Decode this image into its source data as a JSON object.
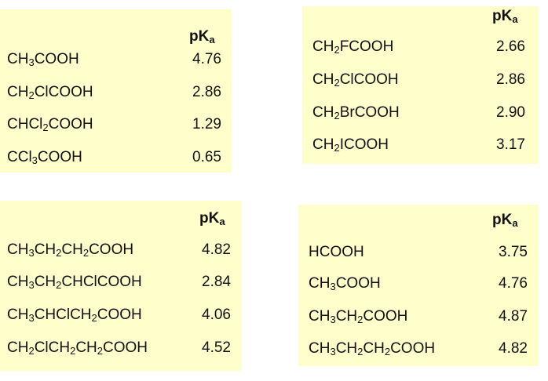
{
  "tables": [
    {
      "header": {
        "main": "pK",
        "sub": "a"
      },
      "rows": [
        {
          "formula": [
            [
              "CH",
              "3"
            ],
            [
              "COOH",
              ""
            ]
          ],
          "value": "4.76"
        },
        {
          "formula": [
            [
              "CH",
              "2"
            ],
            [
              "ClCOOH",
              ""
            ]
          ],
          "value": "2.86"
        },
        {
          "formula": [
            [
              "CHCl",
              "2"
            ],
            [
              "COOH",
              ""
            ]
          ],
          "value": "1.29"
        },
        {
          "formula": [
            [
              "CCl",
              "3"
            ],
            [
              "COOH",
              ""
            ]
          ],
          "value": "0.65"
        }
      ]
    },
    {
      "header": {
        "main": "pK",
        "sub": "a"
      },
      "rows": [
        {
          "formula": [
            [
              "CH",
              "2"
            ],
            [
              "FCOOH",
              ""
            ]
          ],
          "value": "2.66"
        },
        {
          "formula": [
            [
              "CH",
              "2"
            ],
            [
              "ClCOOH",
              ""
            ]
          ],
          "value": "2.86"
        },
        {
          "formula": [
            [
              "CH",
              "2"
            ],
            [
              "BrCOOH",
              ""
            ]
          ],
          "value": "2.90"
        },
        {
          "formula": [
            [
              "CH",
              "2"
            ],
            [
              "ICOOH",
              ""
            ]
          ],
          "value": "3.17"
        }
      ]
    },
    {
      "header": {
        "main": "pK",
        "sub": "a"
      },
      "rows": [
        {
          "formula": [
            [
              "CH",
              "3"
            ],
            [
              "CH",
              "2"
            ],
            [
              "CH",
              "2"
            ],
            [
              "COOH",
              ""
            ]
          ],
          "value": "4.82"
        },
        {
          "formula": [
            [
              "CH",
              "3"
            ],
            [
              "CH",
              "2"
            ],
            [
              "CHClCOOH",
              ""
            ]
          ],
          "value": "2.84"
        },
        {
          "formula": [
            [
              "CH",
              "3"
            ],
            [
              "CHClCH",
              "2"
            ],
            [
              "COOH",
              ""
            ]
          ],
          "value": "4.06"
        },
        {
          "formula": [
            [
              "CH",
              "2"
            ],
            [
              "ClCH",
              "2"
            ],
            [
              "CH",
              "2"
            ],
            [
              "COOH",
              ""
            ]
          ],
          "value": "4.52"
        }
      ]
    },
    {
      "header": {
        "main": "pK",
        "sub": "a"
      },
      "rows": [
        {
          "formula": [
            [
              "HCOOH",
              ""
            ]
          ],
          "value": "3.75"
        },
        {
          "formula": [
            [
              "CH",
              "3"
            ],
            [
              "COOH",
              ""
            ]
          ],
          "value": "4.76"
        },
        {
          "formula": [
            [
              "CH",
              "3"
            ],
            [
              "CH",
              "2"
            ],
            [
              "COOH",
              ""
            ]
          ],
          "value": "4.87"
        },
        {
          "formula": [
            [
              "CH",
              "3"
            ],
            [
              "CH",
              "2"
            ],
            [
              "CH",
              "2"
            ],
            [
              "COOH",
              ""
            ]
          ],
          "value": "4.82"
        }
      ]
    }
  ]
}
